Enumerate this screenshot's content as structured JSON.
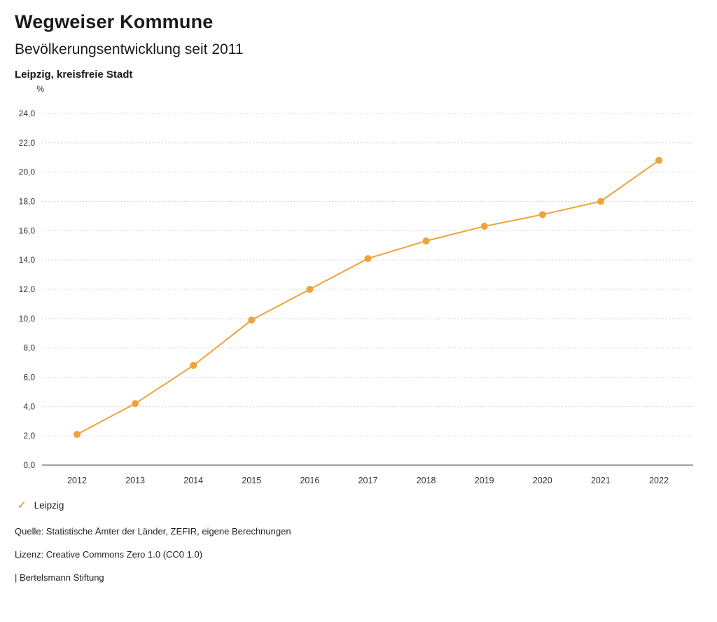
{
  "header": {
    "title": "Wegweiser Kommune",
    "subtitle": "Bevölkerungsentwicklung seit 2011",
    "region": "Leipzig, kreisfreie Stadt"
  },
  "chart_data": {
    "type": "line",
    "unit_label": "%",
    "x": [
      "2012",
      "2013",
      "2014",
      "2015",
      "2016",
      "2017",
      "2018",
      "2019",
      "2020",
      "2021",
      "2022"
    ],
    "series": [
      {
        "name": "Leipzig",
        "color": "#F0A23C",
        "values": [
          2.1,
          4.2,
          6.8,
          9.9,
          12.0,
          14.1,
          15.3,
          16.3,
          17.1,
          18.0,
          20.8
        ]
      }
    ],
    "ylim": [
      0,
      24
    ],
    "ytick_step": 2,
    "decimal_separator": ",",
    "grid": true,
    "legend_position": "bottom-left"
  },
  "legend": {
    "marker": "✓",
    "label": "Leipzig"
  },
  "footer": {
    "source": "Quelle: Statistische Ämter der Länder, ZEFIR, eigene Berechnungen",
    "license": "Lizenz: Creative Commons Zero 1.0 (CC0 1.0)",
    "attribution": "| Bertelsmann Stiftung"
  },
  "colors": {
    "series": "#F0A23C",
    "grid": "#c9c9c9",
    "axis": "#444444",
    "tick_text": "#333333"
  }
}
